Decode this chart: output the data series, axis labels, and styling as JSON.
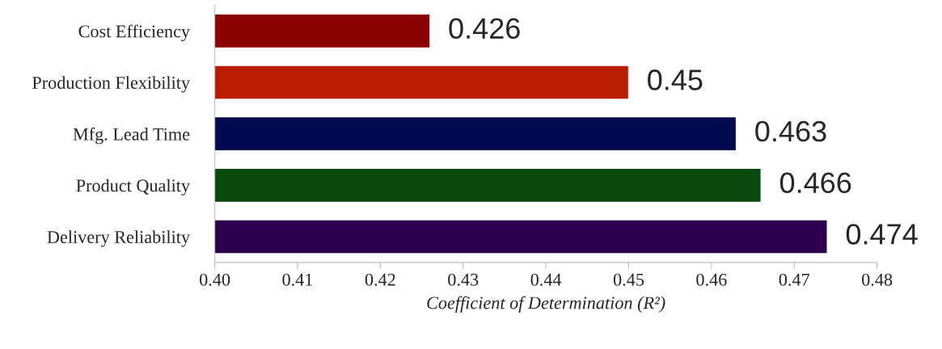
{
  "chart_data": {
    "type": "bar",
    "orientation": "horizontal",
    "xlabel": "Coefficient of Determination (R²)",
    "categories": [
      "Cost Efficiency",
      "Production Flexibility",
      "Mfg. Lead Time",
      "Product Quality",
      "Delivery Reliability"
    ],
    "values": [
      0.426,
      0.45,
      0.463,
      0.466,
      0.474
    ],
    "colors": [
      "#8b0000",
      "#b81d00",
      "#000a4f",
      "#0a4a0e",
      "#2d004d"
    ],
    "xlim": [
      0.4,
      0.48
    ],
    "xticks": [
      {
        "value": 0.4,
        "label": "0.40"
      },
      0.41,
      0.42,
      0.43,
      0.44,
      0.45,
      0.46,
      0.47,
      0.48
    ],
    "data_labels": true,
    "grid": false,
    "legend": false
  }
}
